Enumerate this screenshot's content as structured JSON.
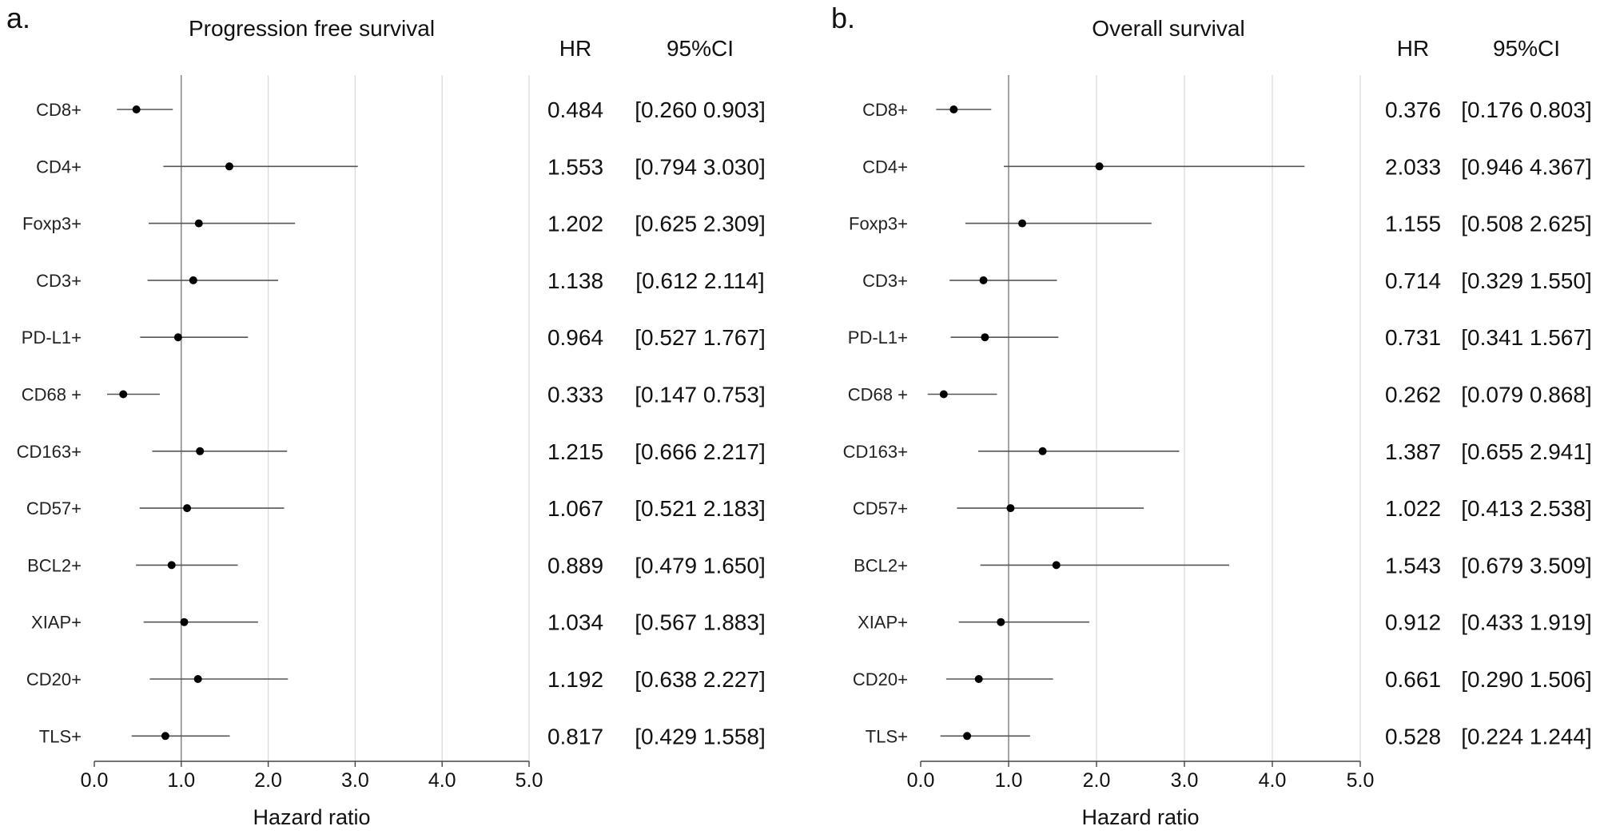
{
  "chart_data": [
    {
      "type": "forest",
      "panel_label": "a.",
      "title": "Progression free survival",
      "xlabel": "Hazard ratio",
      "xlim": [
        0,
        5
      ],
      "xticks": [
        "0.0",
        "1.0",
        "2.0",
        "3.0",
        "4.0",
        "5.0"
      ],
      "reference_line": 1.0,
      "grid": "vertical",
      "column_headers": {
        "hr": "HR",
        "ci": "95%CI"
      },
      "rows": [
        {
          "label": "CD8+",
          "hr": 0.484,
          "lo": 0.26,
          "hi": 0.903,
          "hr_text": "0.484",
          "ci_text": "[0.260 0.903]"
        },
        {
          "label": "CD4+",
          "hr": 1.553,
          "lo": 0.794,
          "hi": 3.03,
          "hr_text": "1.553",
          "ci_text": "[0.794 3.030]"
        },
        {
          "label": "Foxp3+",
          "hr": 1.202,
          "lo": 0.625,
          "hi": 2.309,
          "hr_text": "1.202",
          "ci_text": "[0.625 2.309]"
        },
        {
          "label": "CD3+",
          "hr": 1.138,
          "lo": 0.612,
          "hi": 2.114,
          "hr_text": "1.138",
          "ci_text": "[0.612 2.114]"
        },
        {
          "label": "PD-L1+",
          "hr": 0.964,
          "lo": 0.527,
          "hi": 1.767,
          "hr_text": "0.964",
          "ci_text": "[0.527 1.767]"
        },
        {
          "label": "CD68 +",
          "hr": 0.333,
          "lo": 0.147,
          "hi": 0.753,
          "hr_text": "0.333",
          "ci_text": "[0.147 0.753]"
        },
        {
          "label": "CD163+",
          "hr": 1.215,
          "lo": 0.666,
          "hi": 2.217,
          "hr_text": "1.215",
          "ci_text": "[0.666 2.217]"
        },
        {
          "label": "CD57+",
          "hr": 1.067,
          "lo": 0.521,
          "hi": 2.183,
          "hr_text": "1.067",
          "ci_text": "[0.521 2.183]"
        },
        {
          "label": "BCL2+",
          "hr": 0.889,
          "lo": 0.479,
          "hi": 1.65,
          "hr_text": "0.889",
          "ci_text": "[0.479 1.650]"
        },
        {
          "label": "XIAP+",
          "hr": 1.034,
          "lo": 0.567,
          "hi": 1.883,
          "hr_text": "1.034",
          "ci_text": "[0.567 1.883]"
        },
        {
          "label": "CD20+",
          "hr": 1.192,
          "lo": 0.638,
          "hi": 2.227,
          "hr_text": "1.192",
          "ci_text": "[0.638 2.227]"
        },
        {
          "label": "TLS+",
          "hr": 0.817,
          "lo": 0.429,
          "hi": 1.558,
          "hr_text": "0.817",
          "ci_text": "[0.429 1.558]"
        }
      ]
    },
    {
      "type": "forest",
      "panel_label": "b.",
      "title": "Overall survival",
      "xlabel": "Hazard ratio",
      "xlim": [
        0,
        5
      ],
      "xticks": [
        "0.0",
        "1.0",
        "2.0",
        "3.0",
        "4.0",
        "5.0"
      ],
      "reference_line": 1.0,
      "grid": "vertical",
      "column_headers": {
        "hr": "HR",
        "ci": "95%CI"
      },
      "rows": [
        {
          "label": "CD8+",
          "hr": 0.376,
          "lo": 0.176,
          "hi": 0.803,
          "hr_text": "0.376",
          "ci_text": "[0.176 0.803]"
        },
        {
          "label": "CD4+",
          "hr": 2.033,
          "lo": 0.946,
          "hi": 4.367,
          "hr_text": "2.033",
          "ci_text": "[0.946 4.367]"
        },
        {
          "label": "Foxp3+",
          "hr": 1.155,
          "lo": 0.508,
          "hi": 2.625,
          "hr_text": "1.155",
          "ci_text": "[0.508 2.625]"
        },
        {
          "label": "CD3+",
          "hr": 0.714,
          "lo": 0.329,
          "hi": 1.55,
          "hr_text": "0.714",
          "ci_text": "[0.329 1.550]"
        },
        {
          "label": "PD-L1+",
          "hr": 0.731,
          "lo": 0.341,
          "hi": 1.567,
          "hr_text": "0.731",
          "ci_text": "[0.341 1.567]"
        },
        {
          "label": "CD68 +",
          "hr": 0.262,
          "lo": 0.079,
          "hi": 0.868,
          "hr_text": "0.262",
          "ci_text": "[0.079 0.868]"
        },
        {
          "label": "CD163+",
          "hr": 1.387,
          "lo": 0.655,
          "hi": 2.941,
          "hr_text": "1.387",
          "ci_text": "[0.655 2.941]"
        },
        {
          "label": "CD57+",
          "hr": 1.022,
          "lo": 0.413,
          "hi": 2.538,
          "hr_text": "1.022",
          "ci_text": "[0.413 2.538]"
        },
        {
          "label": "BCL2+",
          "hr": 1.543,
          "lo": 0.679,
          "hi": 3.509,
          "hr_text": "1.543",
          "ci_text": "[0.679 3.509]"
        },
        {
          "label": "XIAP+",
          "hr": 0.912,
          "lo": 0.433,
          "hi": 1.919,
          "hr_text": "0.912",
          "ci_text": "[0.433 1.919]"
        },
        {
          "label": "CD20+",
          "hr": 0.661,
          "lo": 0.29,
          "hi": 1.506,
          "hr_text": "0.661",
          "ci_text": "[0.290 1.506]"
        },
        {
          "label": "TLS+",
          "hr": 0.528,
          "lo": 0.224,
          "hi": 1.244,
          "hr_text": "0.528",
          "ci_text": "[0.224 1.244]"
        }
      ]
    }
  ]
}
